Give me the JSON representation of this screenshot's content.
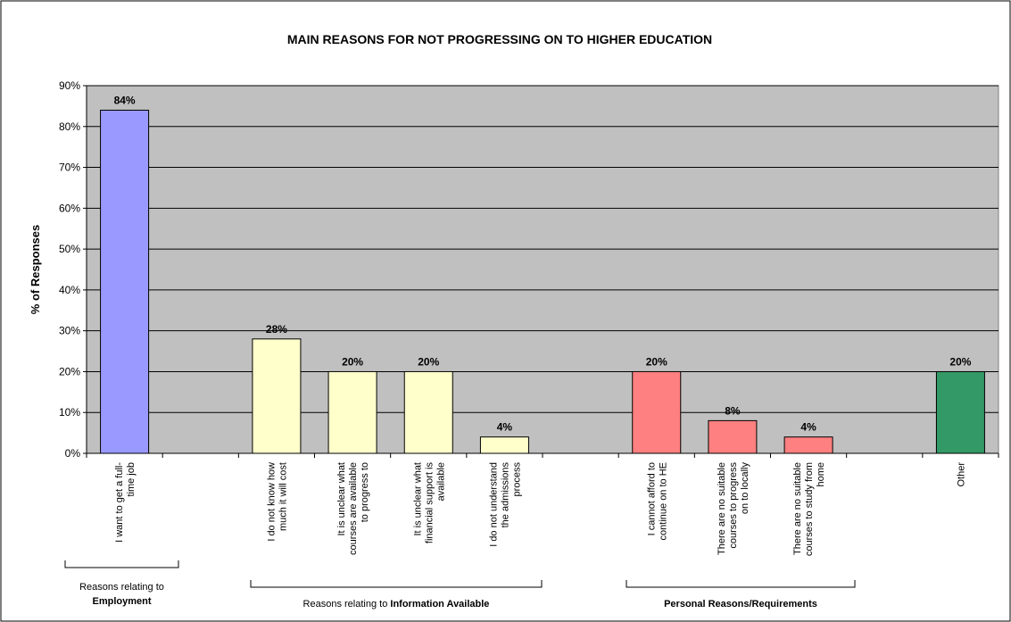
{
  "chart_data": {
    "type": "bar",
    "title": "MAIN REASONS FOR NOT PROGRESSING ON TO HIGHER EDUCATION",
    "y_label": "% of Responses",
    "categories": [
      "I want to get a full-time job",
      null,
      "I do not know how much it will cost",
      "It is unclear what courses are available to progress to",
      "It is unclear what financial support is available",
      "I do not understand the admissions process",
      null,
      "I cannot afford to continue on to HE",
      "There are no suitable courses to progress on to locally",
      "There are no suitable courses to study from home",
      null,
      "Other"
    ],
    "values": [
      84,
      null,
      28,
      20,
      20,
      4,
      null,
      20,
      8,
      4,
      null,
      20
    ],
    "value_labels": [
      "84%",
      null,
      "28%",
      "20%",
      "20%",
      "4%",
      null,
      "20%",
      "8%",
      "4%",
      null,
      "20%"
    ],
    "colors": [
      "#9999ff",
      null,
      "#ffffcc",
      "#ffffcc",
      "#ffffcc",
      "#ffffcc",
      null,
      "#ff8080",
      "#ff8080",
      "#ff8080",
      null,
      "#339966"
    ],
    "ylim": [
      0,
      90
    ],
    "yticks": [
      {
        "value": 0,
        "label": "0%"
      },
      {
        "value": 10,
        "label": "10%"
      },
      {
        "value": 20,
        "label": "20%"
      },
      {
        "value": 30,
        "label": "30%"
      },
      {
        "value": 40,
        "label": "40%"
      },
      {
        "value": 50,
        "label": "50%"
      },
      {
        "value": 60,
        "label": "60%"
      },
      {
        "value": 70,
        "label": "70%"
      },
      {
        "value": 80,
        "label": "80%"
      },
      {
        "value": 90,
        "label": "90%"
      }
    ],
    "grid": true,
    "plot_background": "#c0c0c0",
    "groups": [
      {
        "label": "Reasons relating to",
        "emphasis": "Employment"
      },
      {
        "label": "Reasons relating to",
        "emphasis": "Information Available"
      },
      {
        "emphasis": "Personal Reasons/Requirements"
      }
    ]
  }
}
